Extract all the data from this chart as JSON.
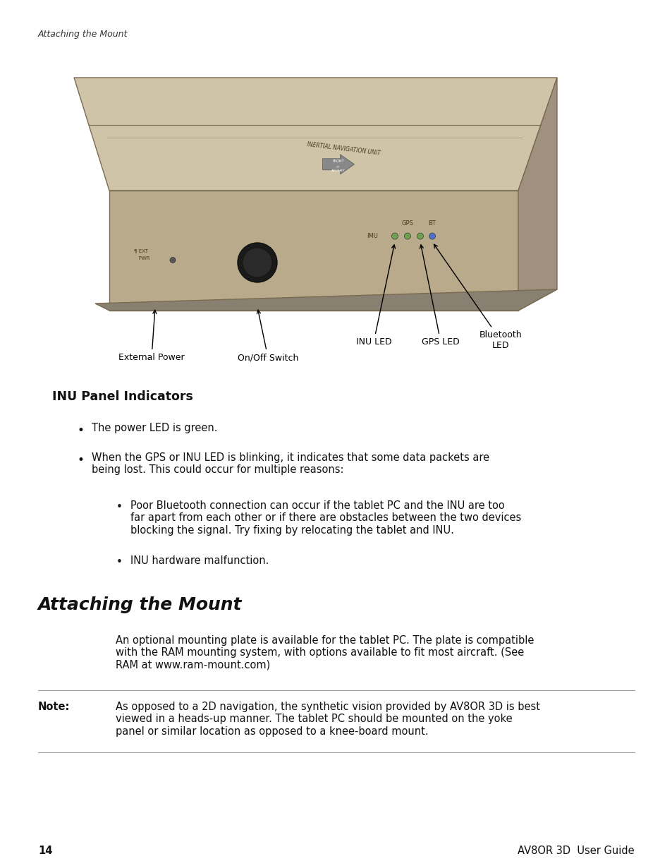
{
  "background_color": "#ffffff",
  "page_header": "Attaching the Mount",
  "page_number": "14",
  "page_footer_right": "AV8OR 3D  User Guide",
  "section1_title": "INU Panel Indicators",
  "section1_bullets": [
    "The power LED is green.",
    "When the GPS or INU LED is blinking, it indicates that some data packets are\nbeing lost. This could occur for multiple reasons:"
  ],
  "section1_sub_bullets": [
    "Poor Bluetooth connection can occur if the tablet PC and the INU are too\nfar apart from each other or if there are obstacles between the two devices\nblocking the signal. Try fixing by relocating the tablet and INU.",
    "INU hardware malfunction."
  ],
  "section2_title": "Attaching the Mount",
  "section2_body": "An optional mounting plate is available for the tablet PC. The plate is compatible\nwith the RAM mounting system, with options available to fit most aircraft. (See\nRAM at www.ram-mount.com)",
  "note_label": "Note:",
  "note_body": "As opposed to a 2D navigation, the synthetic vision provided by AV8OR 3D is best\nviewed in a heads-up manner. The tablet PC should be mounted on the yoke\npanel or similar location as opposed to a knee-board mount.",
  "device": {
    "top_color": "#c8ba9a",
    "top_lid_color": "#d0c4a8",
    "front_color": "#b8aa8a",
    "right_color": "#a09080",
    "bottom_color": "#888070",
    "edge_color": "#7a6a50",
    "text_color": "#5a4a30",
    "label_color": "#4a3a20"
  },
  "image_labels": {
    "external_power": "External Power",
    "onoff_switch": "On/Off Switch",
    "inu_led": "INU LED",
    "gps_led": "GPS LED",
    "bluetooth_led": "Bluetooth\nLED"
  }
}
